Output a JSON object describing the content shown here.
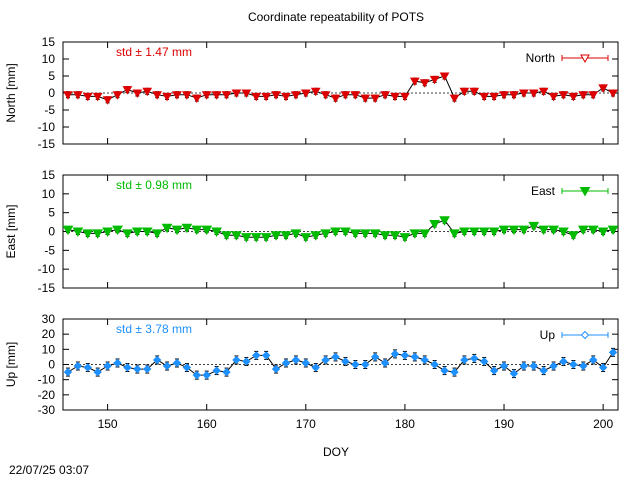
{
  "chart_data": {
    "type": "scatter",
    "title": "Coordinate repeatability of POTS",
    "xlabel": "DOY",
    "xlim": [
      145.5,
      201.5
    ],
    "xticks": [
      150,
      160,
      170,
      180,
      190,
      200
    ],
    "timestamp": "22/07/25 03:07",
    "panels": [
      {
        "name": "North",
        "ylabel": "North [mm]",
        "ylim": [
          -15,
          15
        ],
        "yticks": [
          -15,
          -10,
          -5,
          0,
          5,
          10,
          15
        ],
        "std_label": "std ± 1.47 mm",
        "color": "#dd0000",
        "days": [
          146,
          147,
          148,
          149,
          150,
          151,
          152,
          153,
          154,
          155,
          156,
          157,
          158,
          159,
          160,
          161,
          162,
          163,
          164,
          165,
          166,
          167,
          168,
          169,
          170,
          171,
          172,
          173,
          174,
          175,
          176,
          177,
          178,
          179,
          180,
          181,
          182,
          183,
          184,
          185,
          186,
          187,
          188,
          189,
          190,
          191,
          192,
          193,
          194,
          195,
          196,
          197,
          198,
          199,
          200,
          201
        ],
        "values": [
          -0.5,
          -0.5,
          -1.0,
          -1.0,
          -2.0,
          -0.5,
          1.0,
          0.0,
          0.5,
          -0.5,
          -1.0,
          -0.5,
          -0.5,
          -1.5,
          -0.5,
          -0.5,
          -0.5,
          0.0,
          0.0,
          -1.0,
          -1.0,
          -0.5,
          -1.0,
          -0.5,
          0.0,
          0.5,
          -0.5,
          -1.5,
          -0.5,
          -0.5,
          -1.5,
          -1.5,
          -0.5,
          -1.0,
          -1.0,
          3.5,
          3.0,
          4.0,
          5.0,
          -1.5,
          0.5,
          0.5,
          -1.0,
          -1.0,
          -0.5,
          -0.5,
          0.0,
          0.0,
          0.5,
          -1.0,
          -0.5,
          -1.0,
          -0.5,
          -0.5,
          1.5,
          0.0
        ]
      },
      {
        "name": "East",
        "ylabel": "East [mm]",
        "ylim": [
          -15,
          15
        ],
        "yticks": [
          -15,
          -10,
          -5,
          0,
          5,
          10,
          15
        ],
        "std_label": "std ± 0.98 mm",
        "color": "#00bb00",
        "days": [
          146,
          147,
          148,
          149,
          150,
          151,
          152,
          153,
          154,
          155,
          156,
          157,
          158,
          159,
          160,
          161,
          162,
          163,
          164,
          165,
          166,
          167,
          168,
          169,
          170,
          171,
          172,
          173,
          174,
          175,
          176,
          177,
          178,
          179,
          180,
          181,
          182,
          183,
          184,
          185,
          186,
          187,
          188,
          189,
          190,
          191,
          192,
          193,
          194,
          195,
          196,
          197,
          198,
          199,
          200,
          201
        ],
        "values": [
          0.5,
          0.0,
          -0.5,
          -0.5,
          0.0,
          0.5,
          -0.5,
          0.0,
          0.0,
          -0.5,
          1.0,
          0.5,
          1.0,
          0.5,
          0.5,
          0.0,
          -1.0,
          -1.0,
          -1.5,
          -1.5,
          -1.5,
          -1.0,
          -1.0,
          -0.5,
          -1.5,
          -1.0,
          -0.5,
          0.0,
          0.0,
          -0.5,
          -0.5,
          -0.5,
          -1.0,
          -1.0,
          -1.5,
          -0.5,
          -0.5,
          2.0,
          3.0,
          -0.5,
          0.0,
          0.0,
          0.0,
          0.0,
          0.5,
          0.5,
          0.5,
          1.5,
          0.5,
          0.5,
          0.0,
          -1.0,
          0.5,
          0.5,
          0.0,
          0.5
        ]
      },
      {
        "name": "Up",
        "ylabel": "Up [mm]",
        "ylim": [
          -30,
          30
        ],
        "yticks": [
          -30,
          -20,
          -10,
          0,
          10,
          20,
          30
        ],
        "std_label": "std ± 3.78 mm",
        "color": "#1e90ff",
        "days": [
          146,
          147,
          148,
          149,
          150,
          151,
          152,
          153,
          154,
          155,
          156,
          157,
          158,
          159,
          160,
          161,
          162,
          163,
          164,
          165,
          166,
          167,
          168,
          169,
          170,
          171,
          172,
          173,
          174,
          175,
          176,
          177,
          178,
          179,
          180,
          181,
          182,
          183,
          184,
          185,
          186,
          187,
          188,
          189,
          190,
          191,
          192,
          193,
          194,
          195,
          196,
          197,
          198,
          199,
          200,
          201
        ],
        "values": [
          -5,
          -1,
          -2,
          -5,
          -1,
          1,
          -2,
          -3,
          -3,
          3,
          -1,
          1,
          -2,
          -7,
          -7,
          -4,
          -5,
          3,
          2,
          6,
          6,
          -3,
          1,
          3,
          1,
          -2,
          3,
          5,
          2,
          0,
          0,
          5,
          1,
          7,
          6,
          5,
          3,
          0,
          -4,
          -5,
          3,
          4,
          2,
          -4,
          -1,
          -6,
          -1,
          -1,
          -4,
          -1,
          2,
          0,
          -1,
          3,
          -2,
          8
        ]
      }
    ]
  }
}
